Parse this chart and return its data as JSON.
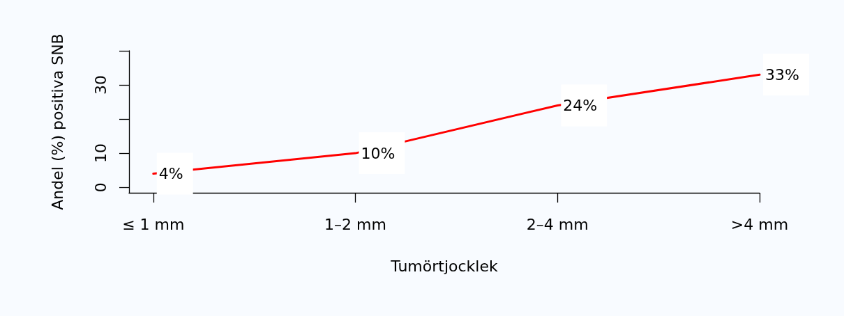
{
  "chart_data": {
    "type": "line",
    "xlabel": "Tumörtjocklek",
    "ylabel": "Andel (%) positiva SNB",
    "categories": [
      "≤ 1 mm",
      "1–2 mm",
      "2–4 mm",
      ">4 mm"
    ],
    "values": [
      4,
      10,
      24,
      33
    ],
    "value_labels": [
      "4%",
      "10%",
      "24%",
      "33%"
    ],
    "color": "#ff0000",
    "ylim": [
      -1.6,
      40
    ],
    "yticks": [
      0,
      10,
      {
        "value": 20,
        "label": null
      },
      30,
      {
        "value": 40,
        "label": null
      }
    ],
    "marker": "none",
    "line_style": "solid"
  }
}
